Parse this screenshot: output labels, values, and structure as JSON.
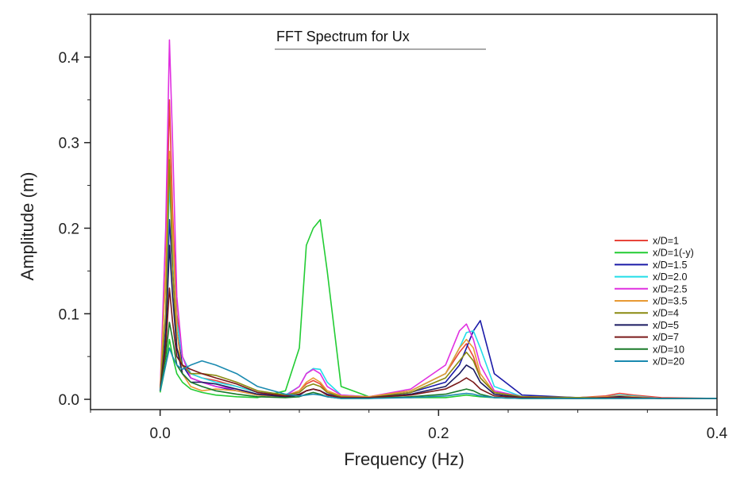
{
  "chart_data": {
    "type": "line",
    "title": "FFT Spectrum for  Ux",
    "xlabel": "Frequency (Hz)",
    "ylabel": "Amplitude (m)",
    "xlim": [
      -0.05,
      0.4
    ],
    "ylim": [
      -0.012,
      0.45
    ],
    "xticks": [
      0.0,
      0.2,
      0.4
    ],
    "xtick_labels": [
      "0.0",
      "0.2",
      "0.4"
    ],
    "yticks": [
      0.0,
      0.1,
      0.2,
      0.3,
      0.4
    ],
    "ytick_labels": [
      "0.0",
      "0.1",
      "0.2",
      "0.3",
      "0.4"
    ],
    "grid": false,
    "legend_position": "right",
    "x": [
      0.0,
      0.004,
      0.0067,
      0.009,
      0.012,
      0.016,
      0.022,
      0.03,
      0.04,
      0.055,
      0.07,
      0.09,
      0.1,
      0.105,
      0.11,
      0.115,
      0.12,
      0.13,
      0.15,
      0.18,
      0.205,
      0.215,
      0.22,
      0.225,
      0.23,
      0.24,
      0.26,
      0.3,
      0.32,
      0.33,
      0.34,
      0.36,
      0.4
    ],
    "series": [
      {
        "name": "x/D=1",
        "color": "#e8443a",
        "values": [
          0.01,
          0.15,
          0.35,
          0.22,
          0.1,
          0.05,
          0.03,
          0.025,
          0.022,
          0.015,
          0.008,
          0.004,
          0.01,
          0.018,
          0.022,
          0.018,
          0.008,
          0.004,
          0.003,
          0.01,
          0.03,
          0.055,
          0.065,
          0.05,
          0.025,
          0.008,
          0.003,
          0.002,
          0.004,
          0.007,
          0.005,
          0.002,
          0.001
        ]
      },
      {
        "name": "x/D=1(-y)",
        "color": "#22cc33",
        "values": [
          0.008,
          0.04,
          0.07,
          0.05,
          0.03,
          0.02,
          0.012,
          0.008,
          0.005,
          0.003,
          0.002,
          0.01,
          0.06,
          0.18,
          0.2,
          0.21,
          0.15,
          0.015,
          0.003,
          0.002,
          0.002,
          0.004,
          0.005,
          0.004,
          0.003,
          0.002,
          0.001,
          0.001,
          0.001,
          0.002,
          0.002,
          0.001,
          0.001
        ]
      },
      {
        "name": "x/D=1.5",
        "color": "#1a1aa8",
        "values": [
          0.01,
          0.08,
          0.21,
          0.15,
          0.08,
          0.04,
          0.025,
          0.02,
          0.015,
          0.01,
          0.005,
          0.003,
          0.005,
          0.01,
          0.012,
          0.01,
          0.006,
          0.003,
          0.002,
          0.008,
          0.02,
          0.04,
          0.06,
          0.08,
          0.092,
          0.03,
          0.005,
          0.002,
          0.003,
          0.004,
          0.003,
          0.001,
          0.001
        ]
      },
      {
        "name": "x/D=2.0",
        "color": "#22dde8",
        "values": [
          0.01,
          0.1,
          0.25,
          0.18,
          0.09,
          0.05,
          0.03,
          0.025,
          0.02,
          0.015,
          0.008,
          0.005,
          0.015,
          0.03,
          0.036,
          0.035,
          0.02,
          0.005,
          0.003,
          0.01,
          0.03,
          0.06,
          0.078,
          0.08,
          0.06,
          0.015,
          0.003,
          0.002,
          0.003,
          0.005,
          0.004,
          0.001,
          0.001
        ]
      },
      {
        "name": "x/D=2.5",
        "color": "#e030e0",
        "values": [
          0.01,
          0.2,
          0.42,
          0.3,
          0.12,
          0.05,
          0.025,
          0.02,
          0.015,
          0.012,
          0.006,
          0.004,
          0.015,
          0.03,
          0.035,
          0.03,
          0.015,
          0.005,
          0.003,
          0.012,
          0.04,
          0.08,
          0.088,
          0.07,
          0.04,
          0.01,
          0.003,
          0.002,
          0.003,
          0.004,
          0.003,
          0.001,
          0.001
        ]
      },
      {
        "name": "x/D=3.5",
        "color": "#e89a33",
        "values": [
          0.01,
          0.15,
          0.29,
          0.2,
          0.08,
          0.03,
          0.015,
          0.01,
          0.012,
          0.01,
          0.005,
          0.003,
          0.01,
          0.02,
          0.025,
          0.02,
          0.01,
          0.004,
          0.003,
          0.01,
          0.03,
          0.06,
          0.07,
          0.06,
          0.03,
          0.008,
          0.003,
          0.002,
          0.003,
          0.004,
          0.003,
          0.001,
          0.001
        ]
      },
      {
        "name": "x/D=4",
        "color": "#8a8a10",
        "values": [
          0.01,
          0.1,
          0.28,
          0.15,
          0.06,
          0.04,
          0.03,
          0.03,
          0.028,
          0.02,
          0.01,
          0.005,
          0.008,
          0.015,
          0.018,
          0.015,
          0.008,
          0.003,
          0.002,
          0.008,
          0.025,
          0.045,
          0.055,
          0.045,
          0.025,
          0.008,
          0.003,
          0.002,
          0.002,
          0.003,
          0.002,
          0.001,
          0.001
        ]
      },
      {
        "name": "x/D=5",
        "color": "#1a1a60",
        "values": [
          0.01,
          0.07,
          0.18,
          0.12,
          0.06,
          0.03,
          0.02,
          0.02,
          0.018,
          0.012,
          0.006,
          0.003,
          0.005,
          0.01,
          0.012,
          0.01,
          0.005,
          0.002,
          0.002,
          0.006,
          0.015,
          0.03,
          0.04,
          0.035,
          0.02,
          0.006,
          0.002,
          0.001,
          0.002,
          0.003,
          0.002,
          0.001,
          0.001
        ]
      },
      {
        "name": "x/D=7",
        "color": "#7a1a1a",
        "values": [
          0.01,
          0.06,
          0.13,
          0.09,
          0.05,
          0.04,
          0.035,
          0.03,
          0.025,
          0.018,
          0.008,
          0.004,
          0.006,
          0.01,
          0.012,
          0.01,
          0.005,
          0.002,
          0.002,
          0.005,
          0.012,
          0.02,
          0.025,
          0.02,
          0.012,
          0.004,
          0.002,
          0.001,
          0.002,
          0.002,
          0.002,
          0.001,
          0.001
        ]
      },
      {
        "name": "x/D=10",
        "color": "#1a7a2a",
        "values": [
          0.01,
          0.05,
          0.09,
          0.07,
          0.04,
          0.03,
          0.02,
          0.015,
          0.01,
          0.006,
          0.003,
          0.002,
          0.003,
          0.006,
          0.008,
          0.006,
          0.003,
          0.001,
          0.001,
          0.003,
          0.006,
          0.01,
          0.012,
          0.01,
          0.006,
          0.002,
          0.001,
          0.001,
          0.001,
          0.001,
          0.001,
          0.001,
          0.001
        ]
      },
      {
        "name": "x/D=20",
        "color": "#1a8ab0",
        "values": [
          0.01,
          0.04,
          0.06,
          0.05,
          0.04,
          0.035,
          0.04,
          0.045,
          0.04,
          0.03,
          0.015,
          0.006,
          0.004,
          0.005,
          0.006,
          0.005,
          0.003,
          0.001,
          0.001,
          0.002,
          0.004,
          0.006,
          0.007,
          0.006,
          0.004,
          0.002,
          0.001,
          0.001,
          0.001,
          0.001,
          0.001,
          0.001,
          0.001
        ]
      }
    ]
  }
}
